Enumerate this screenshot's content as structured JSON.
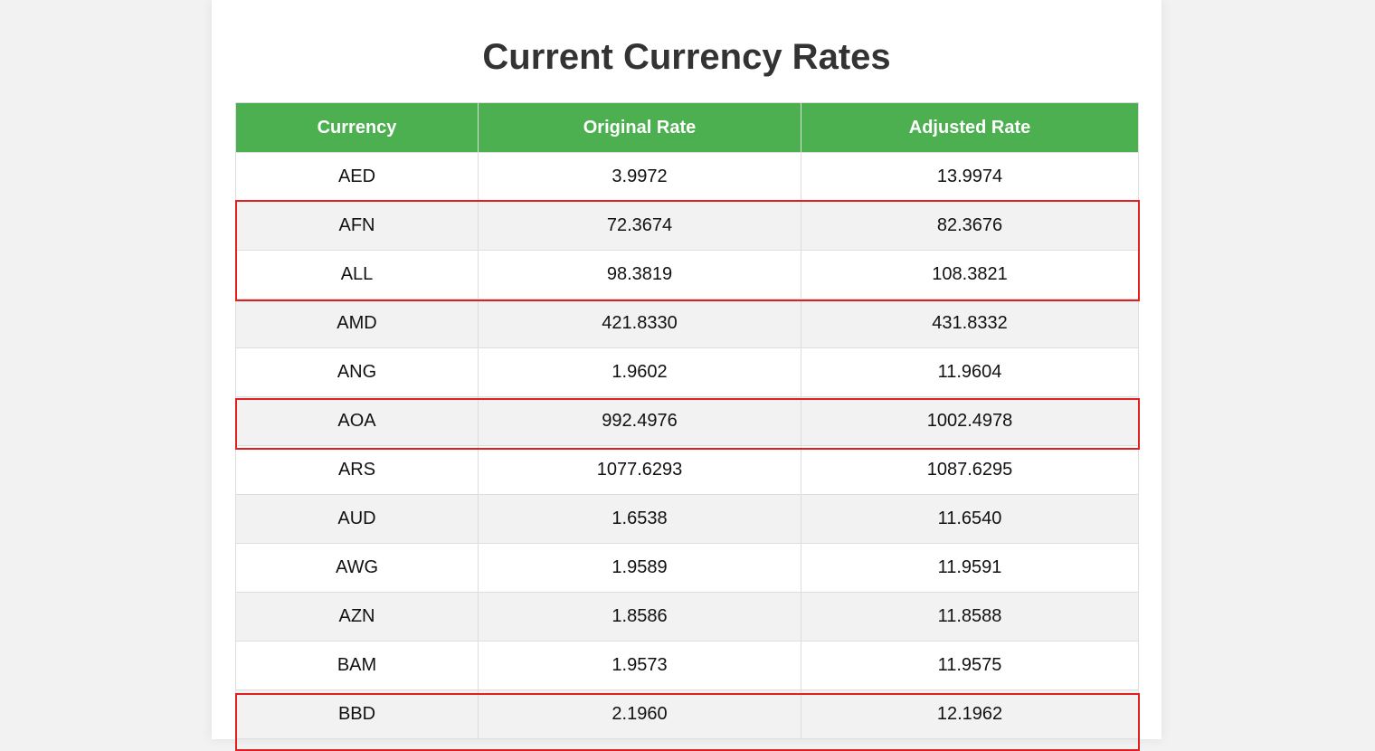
{
  "title": "Current Currency Rates",
  "colors": {
    "header_bg": "#4caf50",
    "header_text": "#ffffff",
    "highlight_border": "#e02020",
    "row_alt_bg": "#f2f2f2"
  },
  "table": {
    "headers": [
      "Currency",
      "Original Rate",
      "Adjusted Rate"
    ],
    "rows": [
      {
        "currency": "AED",
        "original": "3.9972",
        "adjusted": "13.9974"
      },
      {
        "currency": "AFN",
        "original": "72.3674",
        "adjusted": "82.3676"
      },
      {
        "currency": "ALL",
        "original": "98.3819",
        "adjusted": "108.3821"
      },
      {
        "currency": "AMD",
        "original": "421.8330",
        "adjusted": "431.8332"
      },
      {
        "currency": "ANG",
        "original": "1.9602",
        "adjusted": "11.9604"
      },
      {
        "currency": "AOA",
        "original": "992.4976",
        "adjusted": "1002.4978"
      },
      {
        "currency": "ARS",
        "original": "1077.6293",
        "adjusted": "1087.6295"
      },
      {
        "currency": "AUD",
        "original": "1.6538",
        "adjusted": "11.6540"
      },
      {
        "currency": "AWG",
        "original": "1.9589",
        "adjusted": "11.9591"
      },
      {
        "currency": "AZN",
        "original": "1.8586",
        "adjusted": "11.8588"
      },
      {
        "currency": "BAM",
        "original": "1.9573",
        "adjusted": "11.9575"
      },
      {
        "currency": "BBD",
        "original": "2.1960",
        "adjusted": "12.1962"
      }
    ],
    "highlighted_rows": [
      "AFN",
      "ALL",
      "AOA",
      "BBD"
    ]
  }
}
